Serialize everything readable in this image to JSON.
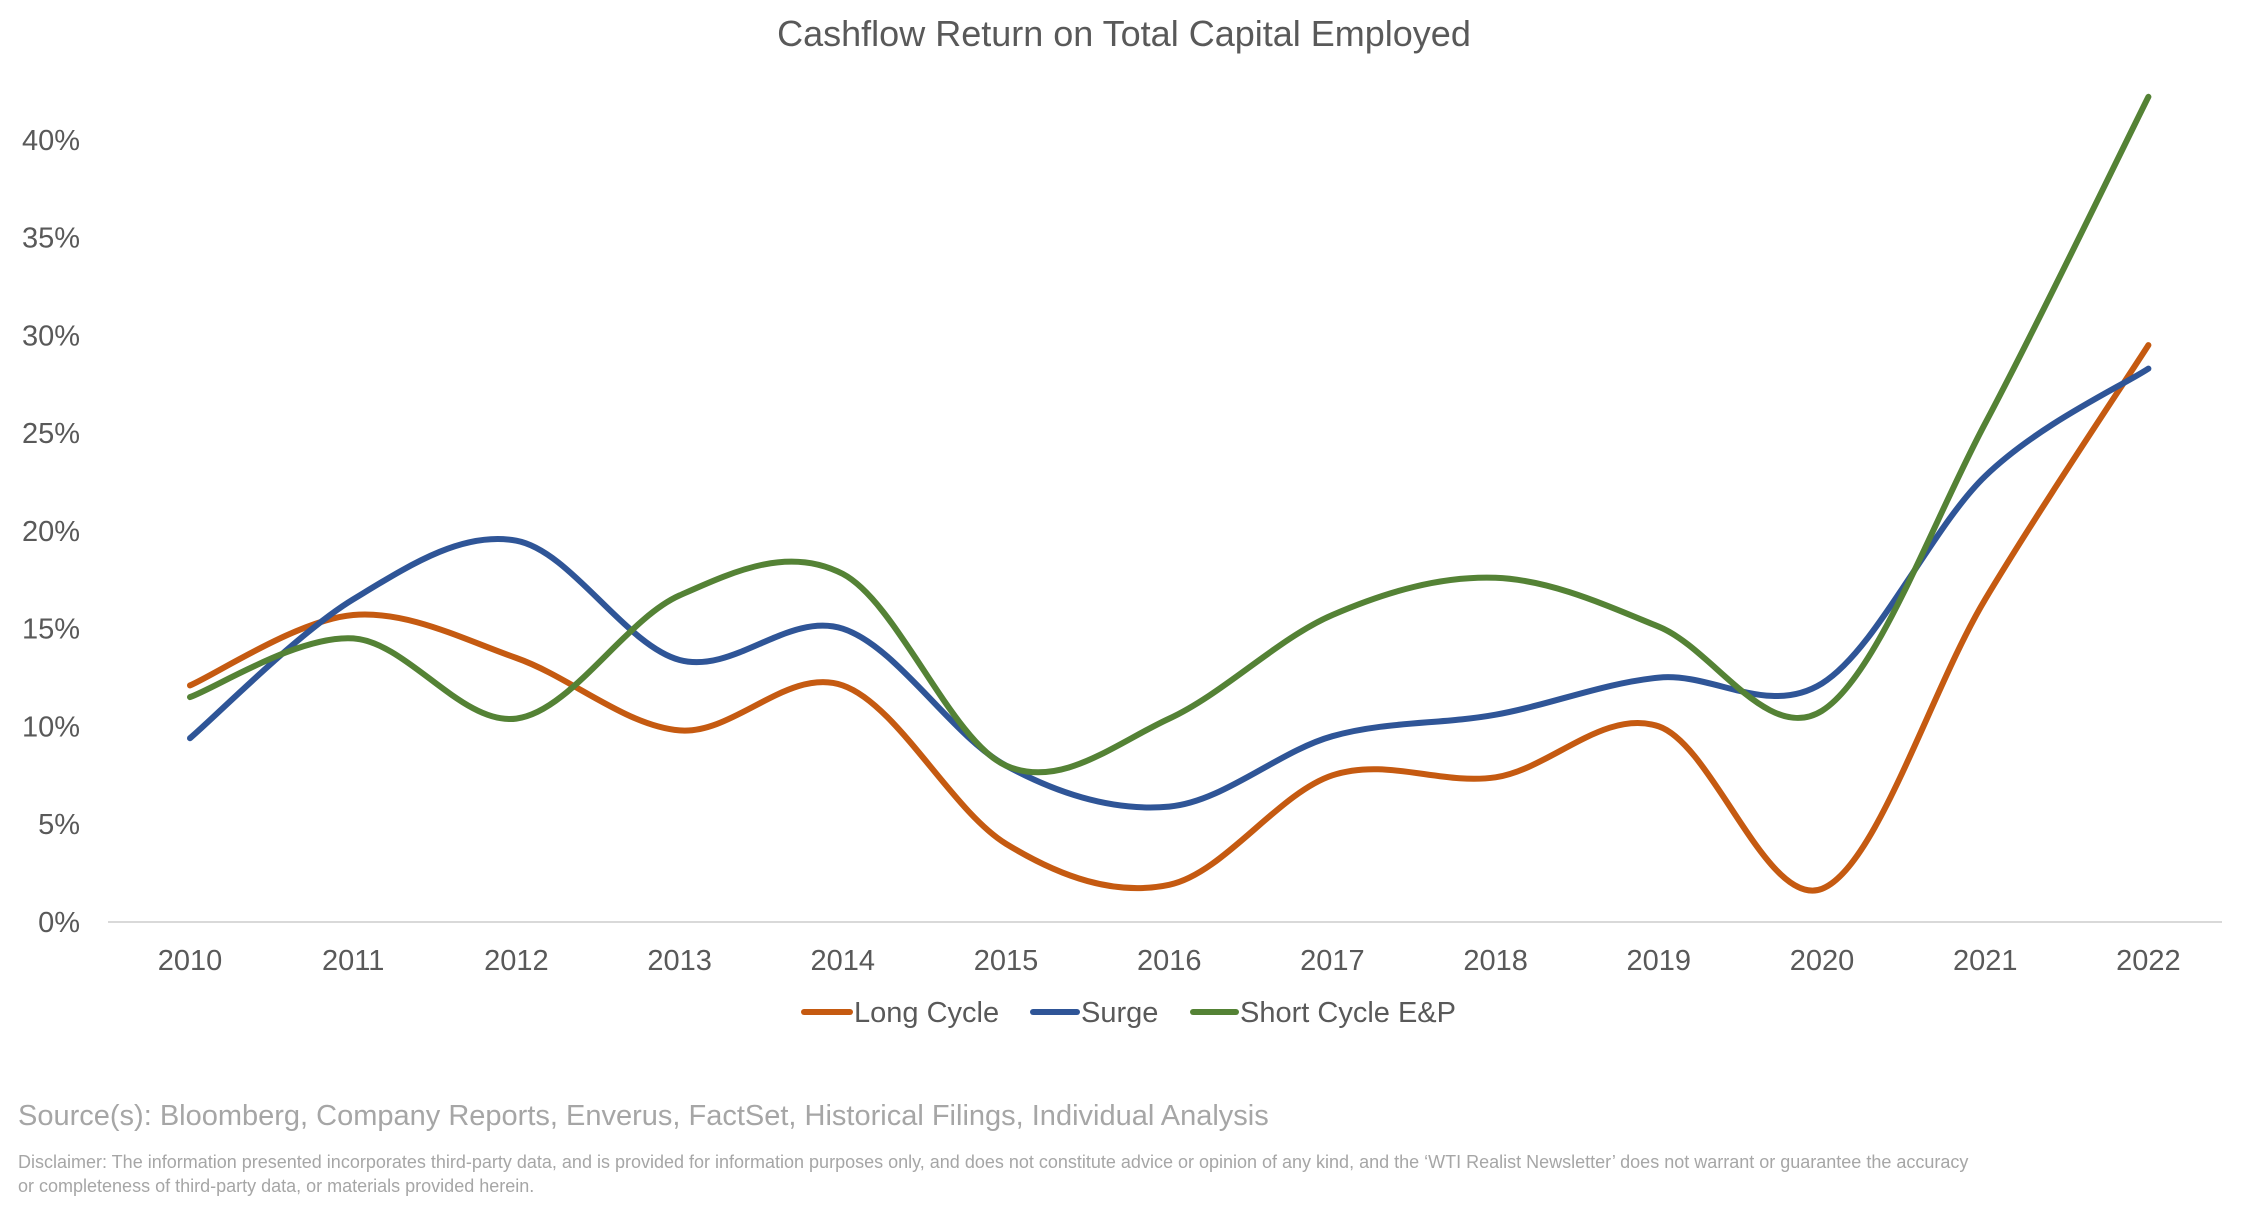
{
  "chart_data": {
    "type": "line",
    "title": "Cashflow Return on Total Capital Employed",
    "xlabel": "",
    "ylabel": "",
    "categories": [
      "2010",
      "2011",
      "2012",
      "2013",
      "2014",
      "2015",
      "2016",
      "2017",
      "2018",
      "2019",
      "2020",
      "2021",
      "2022"
    ],
    "ylim": [
      0,
      0.45
    ],
    "yticks": [
      0,
      0.05,
      0.1,
      0.15,
      0.2,
      0.25,
      0.3,
      0.35,
      0.4
    ],
    "ytick_labels": [
      "0%",
      "5%",
      "10%",
      "15%",
      "20%",
      "25%",
      "30%",
      "35%",
      "40%"
    ],
    "y_format": "percent",
    "grid": false,
    "smooth": true,
    "legend_position": "bottom",
    "series": [
      {
        "name": "Long Cycle",
        "color": "#C55A11",
        "values": [
          0.121,
          0.157,
          0.135,
          0.098,
          0.121,
          0.04,
          0.019,
          0.075,
          0.074,
          0.1,
          0.017,
          0.165,
          0.295
        ]
      },
      {
        "name": "Surge",
        "color": "#2F5597",
        "values": [
          0.094,
          0.165,
          0.195,
          0.134,
          0.15,
          0.08,
          0.059,
          0.095,
          0.106,
          0.125,
          0.122,
          0.228,
          0.283
        ]
      },
      {
        "name": "Short Cycle E&P",
        "color": "#548235",
        "values": [
          0.115,
          0.145,
          0.104,
          0.167,
          0.178,
          0.08,
          0.104,
          0.157,
          0.176,
          0.151,
          0.108,
          0.255,
          0.422
        ]
      }
    ],
    "axis_color": "#d9d9d9"
  },
  "footer": {
    "source": "Source(s): Bloomberg, Company Reports, Enverus, FactSet, Historical Filings, Individual Analysis",
    "disclaimer": "Disclaimer: The information presented incorporates third-party data, and is provided for information purposes only, and does not constitute advice or opinion of any kind, and the ‘WTI Realist Newsletter’ does not warrant or guarantee the accuracy or completeness of third-party data, or materials provided herein."
  }
}
